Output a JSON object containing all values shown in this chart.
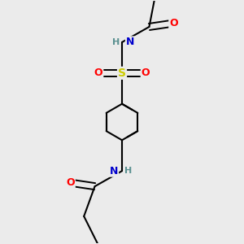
{
  "bg_color": "#ebebeb",
  "atom_colors": {
    "C": "#000000",
    "H": "#5a9090",
    "N": "#0000cc",
    "O": "#ff0000",
    "S": "#cccc00"
  },
  "bond_color": "#000000",
  "bond_width": 1.5,
  "fig_size": [
    3.0,
    3.0
  ],
  "dpi": 100
}
